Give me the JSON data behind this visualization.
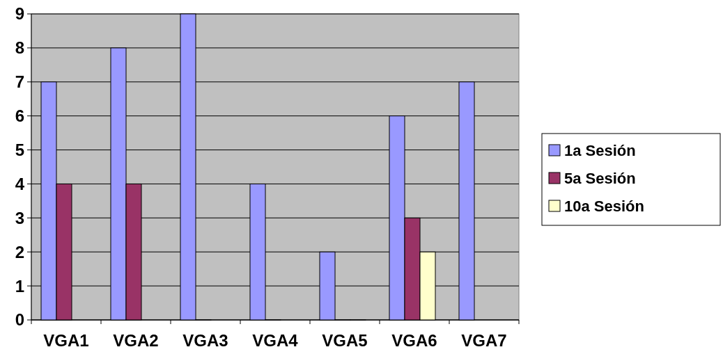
{
  "chart_data": {
    "type": "bar",
    "categories": [
      "VGA1",
      "VGA2",
      "VGA3",
      "VGA4",
      "VGA5",
      "VGA6",
      "VGA7"
    ],
    "series": [
      {
        "name": "1a Sesión",
        "color": "#9999ff",
        "values": [
          7,
          8,
          9,
          4,
          2,
          6,
          7
        ]
      },
      {
        "name": "5a Sesión",
        "color": "#993366",
        "values": [
          4,
          4,
          0,
          0,
          0,
          3,
          null
        ]
      },
      {
        "name": "10a Sesión",
        "color": "#ffffcc",
        "values": [
          null,
          null,
          null,
          null,
          0,
          2,
          null
        ]
      }
    ],
    "ylim": [
      0,
      9
    ],
    "yticks": [
      0,
      1,
      2,
      3,
      4,
      5,
      6,
      7,
      8,
      9
    ],
    "grid": "y",
    "legend": "right"
  }
}
